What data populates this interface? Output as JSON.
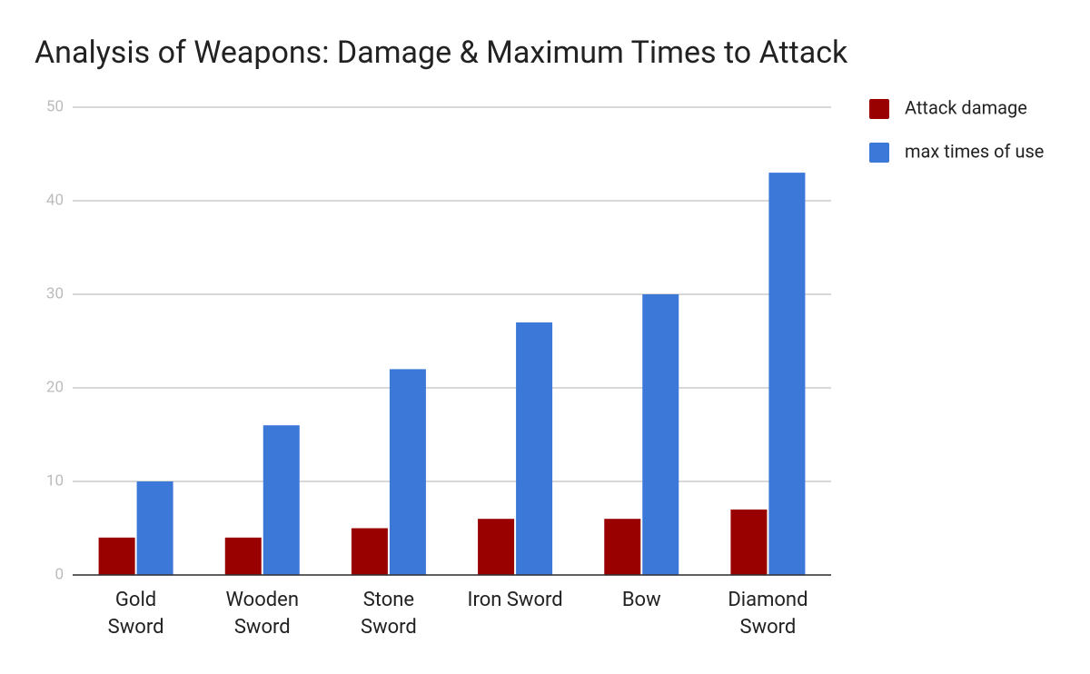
{
  "chart_data": {
    "type": "bar",
    "title": "Analysis of Weapons: Damage & Maximum Times to Attack",
    "categories": [
      "Gold\nSword",
      "Wooden\nSword",
      "Stone\nSword",
      "Iron Sword",
      "Bow",
      "Diamond\nSword"
    ],
    "series": [
      {
        "name": "Attack damage",
        "color": "#990000",
        "values": [
          4,
          4,
          5,
          6,
          6,
          7
        ]
      },
      {
        "name": "max times of use",
        "color": "#3c78d8",
        "values": [
          10,
          16,
          22,
          27,
          30,
          43
        ]
      }
    ],
    "ylim": [
      0,
      50
    ],
    "yticks": [
      0,
      10,
      20,
      30,
      40,
      50
    ],
    "grid": true,
    "legend": "right"
  }
}
